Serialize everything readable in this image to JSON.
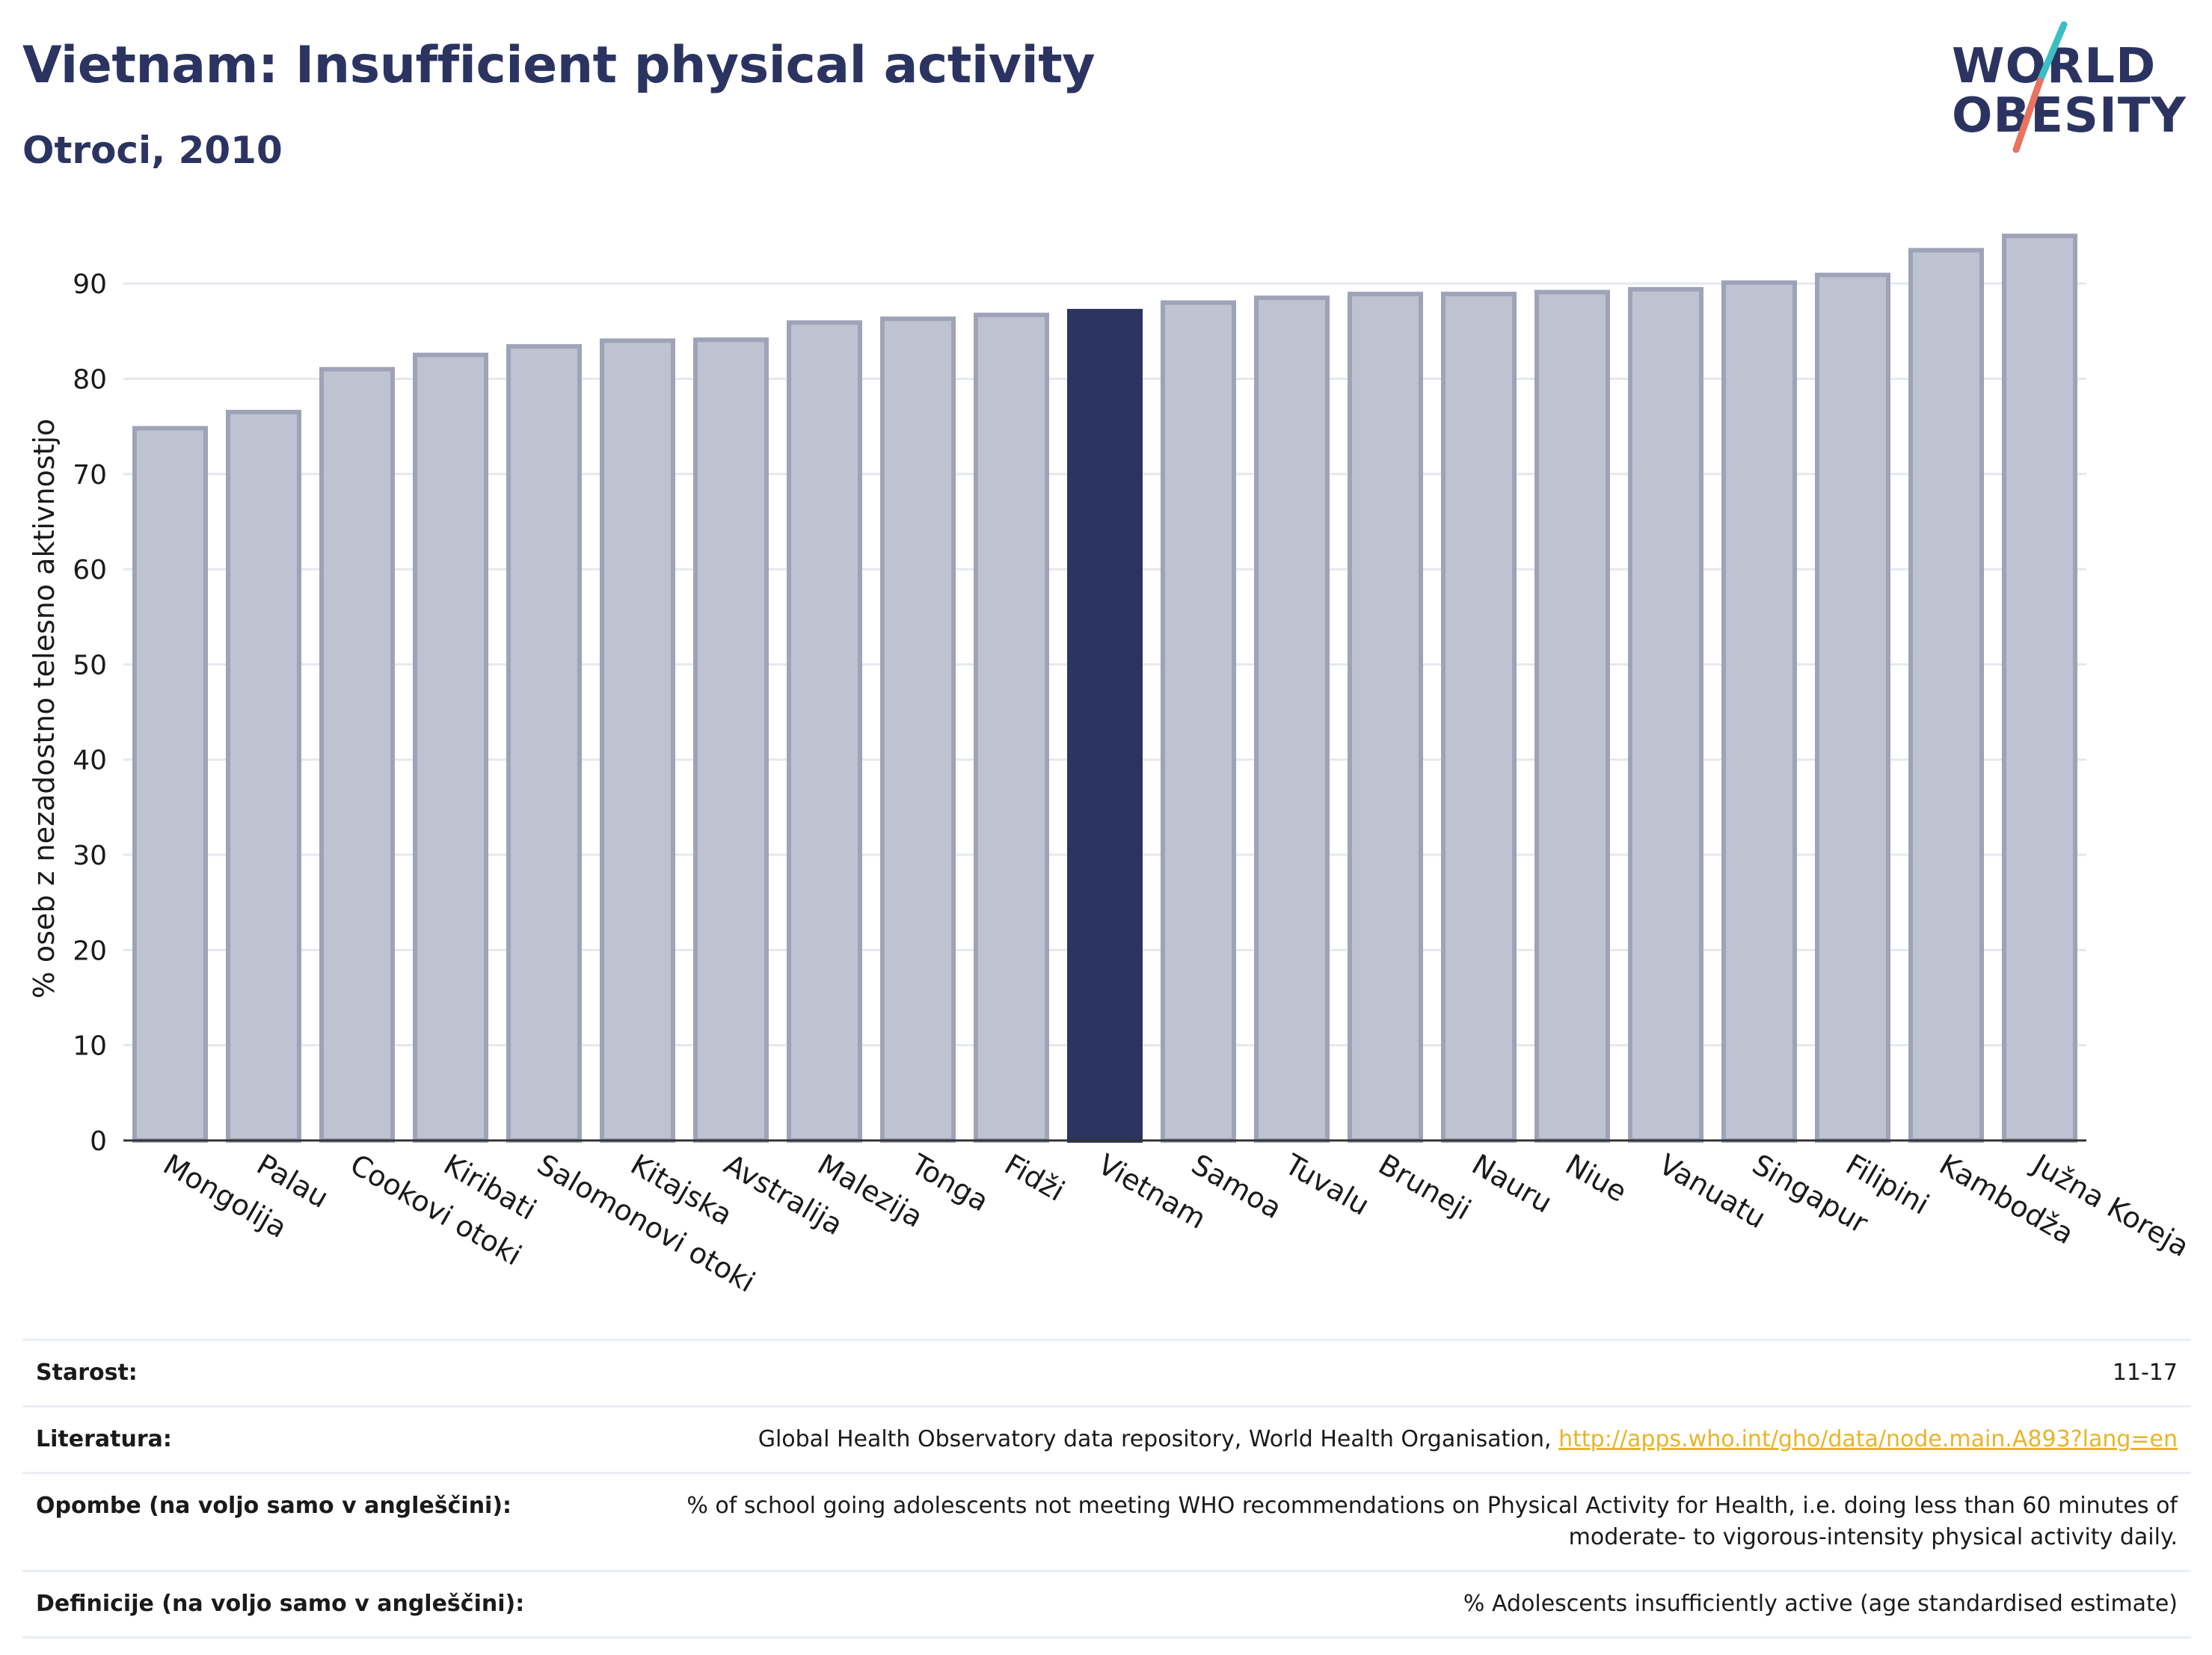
{
  "header": {
    "title": "Vietnam: Insufficient physical activity",
    "subtitle": "Otroci, 2010"
  },
  "logo": {
    "line1": "WORLD",
    "line2": "OBESITY",
    "accent_colors": [
      "#3bbfc4",
      "#e8735f"
    ]
  },
  "colors": {
    "bar_default": "#bfc2d0",
    "bar_default_stroke": "#9ea3b8",
    "bar_highlight": "#2b3461",
    "text": "#2b3461",
    "link": "#e8b428"
  },
  "chart_data": {
    "type": "bar",
    "ylabel": "% oseb z nezadostno telesno aktivnostjo",
    "ylim": [
      0,
      97
    ],
    "yticks": [
      0,
      10,
      20,
      30,
      40,
      50,
      60,
      70,
      80,
      90
    ],
    "grid": true,
    "highlight": "Vietnam",
    "categories": [
      "Mongolija",
      "Palau",
      "Cookovi otoki",
      "Kiribati",
      "Salomonovi otoki",
      "Kitajska",
      "Avstralija",
      "Malezija",
      "Tonga",
      "Fidži",
      "Vietnam",
      "Samoa",
      "Tuvalu",
      "Bruneji",
      "Nauru",
      "Niue",
      "Vanuatu",
      "Singapur",
      "Filipini",
      "Kambodža",
      "Južna Koreja"
    ],
    "values": [
      74.8,
      76.5,
      81.0,
      82.5,
      83.4,
      84.0,
      84.1,
      85.9,
      86.3,
      86.7,
      87.1,
      88.0,
      88.5,
      88.9,
      88.9,
      89.1,
      89.4,
      90.1,
      90.9,
      93.5,
      95.0
    ]
  },
  "meta": {
    "age_label": "Starost:",
    "age_value": "11-17",
    "lit_label": "Literatura:",
    "lit_text": "Global Health Observatory data repository, World Health Organisation,",
    "lit_link": "http://apps.who.int/gho/data/node.main.A893?lang=en",
    "notes_label": "Opombe (na voljo samo v angleščini):",
    "notes_value": "% of school going adolescents not meeting WHO recommendations on Physical Activity for Health, i.e. doing less than 60 minutes of moderate- to vigorous-intensity physical activity daily.",
    "def_label": "Definicije (na voljo samo v angleščini):",
    "def_value": "% Adolescents insufficiently active (age standardised estimate)"
  }
}
